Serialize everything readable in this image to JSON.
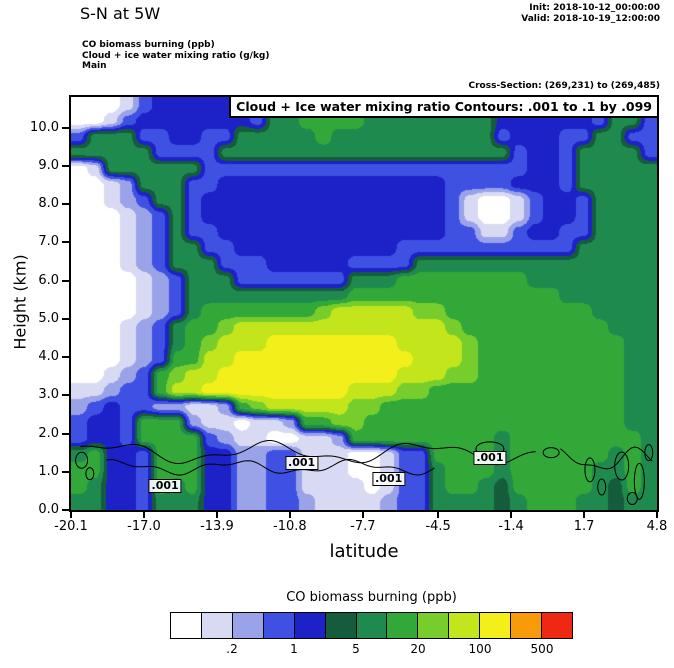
{
  "header": {
    "title": "S-N at 5W",
    "init": "Init: 2018-10-12_00:00:00",
    "valid": "Valid: 2018-10-19_12:00:00",
    "fields": [
      "CO biomass burning   (ppb)",
      "Cloud + ice water mixing ratio   (g/kg)",
      "Main"
    ],
    "cross_section": "Cross-Section: (269,231) to (269,485)"
  },
  "plot": {
    "inner_title": "Cloud + Ice water mixing ratio Contours: .001 to .1 by .099",
    "xlabel": "latitude",
    "ylabel": "Height (km)",
    "x_ticks": [
      "-20.1",
      "-17.0",
      "-13.9",
      "-10.8",
      "-7.7",
      "-4.5",
      "-1.4",
      "1.7",
      "4.8"
    ],
    "y_ticks": [
      "0.0",
      "1.0",
      "2.0",
      "3.0",
      "4.0",
      "5.0",
      "6.0",
      "7.0",
      "8.0",
      "9.0",
      "10.0"
    ]
  },
  "chart_data": {
    "type": "heatmap",
    "title": "CO biomass burning (ppb) filled contours with Cloud + Ice water mixing ratio line contours (.001 and .1 g/kg)",
    "xlabel": "latitude",
    "ylabel": "Height (km)",
    "x_range": [
      -20.1,
      4.8
    ],
    "y_range": [
      0,
      10.8
    ],
    "levels_ppb": [
      0.1,
      0.2,
      0.5,
      1,
      2,
      5,
      10,
      20,
      50,
      100,
      200,
      500
    ],
    "palette": [
      "#ffffff",
      "#d8daf4",
      "#9aa3e8",
      "#3f51e3",
      "#1c22c8",
      "#155c3c",
      "#1f8a4e",
      "#32a838",
      "#76cd2c",
      "#c2e51c",
      "#f2ef1b",
      "#f79b0b",
      "#ee2812"
    ],
    "grid_note": "CO level index per cell (0=lowest/white .. 12=highest/red), 26 rows top-to-bottom (10.8km..0km), 36 cols left-to-right (-20.1..4.8 lat)",
    "grid_rows_top_to_bottom": [
      "000134444443677777766666664444443666",
      "001344444443667777666666664444443663",
      "366633443366666766666666663444336633",
      "666663333666666666666666666344366663",
      "016666663333333333333333333344366666",
      "001266633444444444444443333444366666",
      "001236634444444444444443100134436666",
      "000123634444444444444443100134436666",
      "000123633444444444444443311344336666",
      "000123663344444444443333333333366666",
      "000123666333444443333666666666666666",
      "000012366633333336667777777766666666",
      "000012366666666667777777777777666666",
      "000012367777777899999887777777776666",
      "000123677899999999999998777777777666",
      "000123678999aaaaaaaa9999877777777766",
      "0001237799aaaaaaaaaaa999877777777766",
      "001237899aaaaaaaaaaa9998877777777766",
      "11233799aaaaaaaaa9998877777777777766",
      "234332211278999998877777777777777766",
      "344377721101127788777777777777777766",
      "344377773211001127777777776777777776",
      "674437774422331110013377776777777676",
      "774437774422331110013367776777776676",
      "764437674422331111013367765777776576",
      "664436664422332111123366665677766566"
    ],
    "contour_labels": [
      {
        "lat": -16.1,
        "height": 0.62,
        "text": ".001"
      },
      {
        "lat": -10.3,
        "height": 1.22,
        "text": ".001"
      },
      {
        "lat": -6.6,
        "height": 0.8,
        "text": ".001"
      },
      {
        "lat": -2.3,
        "height": 1.37,
        "text": ".001"
      }
    ]
  },
  "colorbar": {
    "title": "CO biomass burning  (ppb)",
    "tick_labels": [
      ".2",
      "1",
      "5",
      "20",
      "100",
      "500"
    ],
    "tick_boundary_indices": [
      2,
      4,
      6,
      8,
      10,
      12
    ]
  }
}
